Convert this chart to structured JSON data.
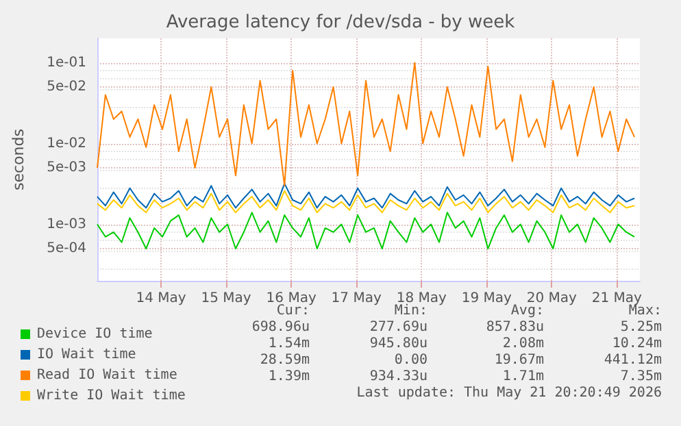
{
  "chart_data": {
    "type": "line",
    "title": "Average latency for /dev/sda - by week",
    "ylabel": "seconds",
    "x": [
      "2026-05-13T12:30",
      "2026-05-13T15:30",
      "2026-05-13T18:30",
      "2026-05-13T21:30",
      "2026-05-14T00:30",
      "2026-05-14T03:30",
      "2026-05-14T06:30",
      "2026-05-14T09:30",
      "2026-05-14T12:30",
      "2026-05-14T15:30",
      "2026-05-14T18:30",
      "2026-05-14T21:30",
      "2026-05-15T00:30",
      "2026-05-15T03:30",
      "2026-05-15T06:30",
      "2026-05-15T09:30",
      "2026-05-15T12:30",
      "2026-05-15T15:30",
      "2026-05-15T18:30",
      "2026-05-15T21:30",
      "2026-05-16T00:30",
      "2026-05-16T03:30",
      "2026-05-16T06:30",
      "2026-05-16T09:30",
      "2026-05-16T12:30",
      "2026-05-16T15:30",
      "2026-05-16T18:30",
      "2026-05-16T21:30",
      "2026-05-17T00:30",
      "2026-05-17T03:30",
      "2026-05-17T06:30",
      "2026-05-17T09:30",
      "2026-05-17T12:30",
      "2026-05-17T15:30",
      "2026-05-17T18:30",
      "2026-05-17T21:30",
      "2026-05-18T00:30",
      "2026-05-18T03:30",
      "2026-05-18T06:30",
      "2026-05-18T09:30",
      "2026-05-18T12:30",
      "2026-05-18T15:30",
      "2026-05-18T18:30",
      "2026-05-18T21:30",
      "2026-05-19T00:30",
      "2026-05-19T03:30",
      "2026-05-19T06:30",
      "2026-05-19T09:30",
      "2026-05-19T12:30",
      "2026-05-19T15:30",
      "2026-05-19T18:30",
      "2026-05-19T21:30",
      "2026-05-20T00:30",
      "2026-05-20T03:30",
      "2026-05-20T06:30",
      "2026-05-20T09:30",
      "2026-05-20T12:30",
      "2026-05-20T15:30",
      "2026-05-20T18:30",
      "2026-05-20T21:30",
      "2026-05-21T00:30",
      "2026-05-21T03:30",
      "2026-05-21T06:30",
      "2026-05-21T09:30",
      "2026-05-21T12:30",
      "2026-05-21T15:30",
      "2026-05-21T18:30"
    ],
    "series": [
      {
        "name": "Device IO time",
        "color": "#00cc00",
        "values": [
          0.001,
          0.0007,
          0.0008,
          0.0006,
          0.0012,
          0.0008,
          0.0005,
          0.0009,
          0.0007,
          0.0011,
          0.0013,
          0.0007,
          0.0009,
          0.0006,
          0.0012,
          0.0008,
          0.001,
          0.0005,
          0.0008,
          0.0014,
          0.0008,
          0.0011,
          0.0006,
          0.0013,
          0.0009,
          0.0007,
          0.0012,
          0.0005,
          0.0009,
          0.0008,
          0.001,
          0.0006,
          0.0013,
          0.0008,
          0.0009,
          0.0005,
          0.0011,
          0.0008,
          0.0006,
          0.0012,
          0.0008,
          0.001,
          0.0006,
          0.0014,
          0.0009,
          0.0011,
          0.0007,
          0.0012,
          0.0005,
          0.0009,
          0.0013,
          0.0008,
          0.001,
          0.0006,
          0.0011,
          0.0008,
          0.0005,
          0.0013,
          0.0008,
          0.001,
          0.0006,
          0.0012,
          0.0009,
          0.0006,
          0.001,
          0.0008,
          0.0007
        ]
      },
      {
        "name": "IO Wait time",
        "color": "#0066b3",
        "values": [
          0.0022,
          0.0017,
          0.0025,
          0.0018,
          0.0028,
          0.002,
          0.0016,
          0.0024,
          0.0019,
          0.0021,
          0.0026,
          0.0017,
          0.0022,
          0.0019,
          0.003,
          0.0018,
          0.0023,
          0.0016,
          0.0021,
          0.0027,
          0.0019,
          0.0024,
          0.0017,
          0.0032,
          0.002,
          0.0018,
          0.0025,
          0.0016,
          0.0022,
          0.0019,
          0.0023,
          0.0017,
          0.0028,
          0.0019,
          0.0021,
          0.0016,
          0.0024,
          0.002,
          0.0018,
          0.0026,
          0.0019,
          0.0022,
          0.0017,
          0.0029,
          0.002,
          0.0023,
          0.0018,
          0.0025,
          0.0017,
          0.0021,
          0.0027,
          0.0019,
          0.0023,
          0.0018,
          0.0024,
          0.002,
          0.0017,
          0.0028,
          0.0019,
          0.0022,
          0.0018,
          0.0025,
          0.002,
          0.0017,
          0.0023,
          0.0019,
          0.0021
        ]
      },
      {
        "name": "Read IO Wait time",
        "color": "#ff8000",
        "values": [
          0.005,
          0.04,
          0.02,
          0.025,
          0.012,
          0.02,
          0.009,
          0.03,
          0.015,
          0.04,
          0.008,
          0.02,
          0.005,
          0.015,
          0.05,
          0.012,
          0.02,
          0.004,
          0.03,
          0.01,
          0.06,
          0.015,
          0.02,
          0.003,
          0.08,
          0.012,
          0.03,
          0.01,
          0.02,
          0.05,
          0.01,
          0.025,
          0.004,
          0.06,
          0.012,
          0.02,
          0.008,
          0.04,
          0.015,
          0.1,
          0.01,
          0.025,
          0.012,
          0.05,
          0.02,
          0.007,
          0.03,
          0.012,
          0.09,
          0.015,
          0.02,
          0.006,
          0.04,
          0.012,
          0.02,
          0.009,
          0.06,
          0.015,
          0.03,
          0.007,
          0.02,
          0.05,
          0.012,
          0.025,
          0.008,
          0.02,
          0.012
        ]
      },
      {
        "name": "Write IO Wait time",
        "color": "#ffcc00",
        "values": [
          0.0018,
          0.0015,
          0.002,
          0.0016,
          0.0023,
          0.0017,
          0.0014,
          0.002,
          0.0016,
          0.0018,
          0.0021,
          0.0015,
          0.0019,
          0.0016,
          0.0024,
          0.0015,
          0.0019,
          0.0014,
          0.0018,
          0.0022,
          0.0016,
          0.002,
          0.0015,
          0.0026,
          0.0017,
          0.0015,
          0.0021,
          0.0014,
          0.0018,
          0.0016,
          0.0019,
          0.0015,
          0.0023,
          0.0016,
          0.0018,
          0.0014,
          0.002,
          0.0017,
          0.0015,
          0.0021,
          0.0016,
          0.0019,
          0.0015,
          0.0024,
          0.0017,
          0.0019,
          0.0015,
          0.0021,
          0.0014,
          0.0018,
          0.0022,
          0.0016,
          0.0019,
          0.0015,
          0.002,
          0.0017,
          0.0014,
          0.0023,
          0.0016,
          0.0018,
          0.0015,
          0.0021,
          0.0017,
          0.0014,
          0.0019,
          0.0016,
          0.0017
        ]
      }
    ],
    "xlim": [
      "2026-05-13T12:30",
      "2026-05-21T20:30"
    ],
    "xticks": [
      {
        "value": "2026-05-14T12:00",
        "label": "14 May"
      },
      {
        "value": "2026-05-15T12:00",
        "label": "15 May"
      },
      {
        "value": "2026-05-16T12:00",
        "label": "16 May"
      },
      {
        "value": "2026-05-17T12:00",
        "label": "17 May"
      },
      {
        "value": "2026-05-18T12:00",
        "label": "18 May"
      },
      {
        "value": "2026-05-19T12:00",
        "label": "19 May"
      },
      {
        "value": "2026-05-20T12:00",
        "label": "20 May"
      },
      {
        "value": "2026-05-21T12:00",
        "label": "21 May"
      }
    ],
    "ylim": [
      0.0002,
      0.2
    ],
    "yticks": [
      {
        "value": 0.0005,
        "label": "5e-04"
      },
      {
        "value": 0.001,
        "label": "1e-03"
      },
      {
        "value": 0.005,
        "label": "5e-03"
      },
      {
        "value": 0.01,
        "label": "1e-02"
      },
      {
        "value": 0.05,
        "label": "5e-02"
      },
      {
        "value": 0.1,
        "label": "1e-01"
      }
    ],
    "log": "y",
    "grid": true,
    "legend": "bottom left",
    "marker": "none",
    "line_style": "solid",
    "annotations": [
      "Cur:",
      "Min:",
      "Avg:",
      "Max:",
      "698.96u",
      "277.69u",
      "857.83u",
      "5.25m",
      "1.54m",
      "945.80u",
      "2.08m",
      "10.24m",
      "28.59m",
      "0.00",
      "19.67m",
      "441.12m",
      "1.39m",
      "934.33u",
      "1.71m",
      "7.35m",
      "Last update: Thu May 21 20:20:49 2026"
    ]
  }
}
